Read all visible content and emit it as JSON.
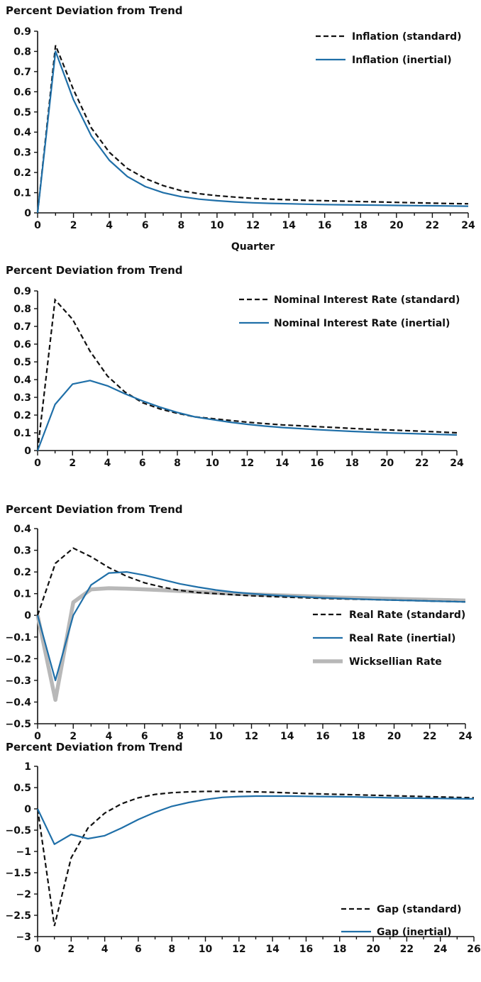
{
  "chart_data": [
    {
      "type": "line",
      "ylabel": "Percent Deviation from Trend",
      "xlabel": "Quarter",
      "xlim": [
        0,
        24
      ],
      "ylim": [
        0,
        0.9
      ],
      "xticks": [
        0,
        2,
        4,
        6,
        8,
        10,
        12,
        14,
        16,
        18,
        20,
        22,
        24
      ],
      "yticks": [
        0,
        0.1,
        0.2,
        0.3,
        0.4,
        0.5,
        0.6,
        0.7,
        0.8,
        0.9
      ],
      "ytick_labels": [
        "0",
        "0.1",
        "0.2",
        "0.3",
        "0.4",
        "0.5",
        "0.6",
        "0.7",
        "0.8",
        "0.9"
      ],
      "legend": "top-right",
      "series": [
        {
          "name": "Inflation (standard)",
          "color": "#111111",
          "style": "dashed",
          "x": [
            0,
            1,
            2,
            3,
            4,
            5,
            6,
            7,
            8,
            9,
            10,
            11,
            12,
            13,
            14,
            15,
            16,
            17,
            18,
            19,
            20,
            21,
            22,
            23,
            24
          ],
          "y": [
            0,
            0.83,
            0.61,
            0.42,
            0.3,
            0.22,
            0.17,
            0.135,
            0.11,
            0.095,
            0.085,
            0.078,
            0.072,
            0.068,
            0.065,
            0.062,
            0.06,
            0.058,
            0.056,
            0.054,
            0.052,
            0.05,
            0.048,
            0.046,
            0.045
          ]
        },
        {
          "name": "Inflation (inertial)",
          "color": "#1f6fa8",
          "style": "solid",
          "x": [
            0,
            1,
            2,
            3,
            4,
            5,
            6,
            7,
            8,
            9,
            10,
            11,
            12,
            13,
            14,
            15,
            16,
            17,
            18,
            19,
            20,
            21,
            22,
            23,
            24
          ],
          "y": [
            0,
            0.8,
            0.56,
            0.38,
            0.26,
            0.18,
            0.13,
            0.1,
            0.08,
            0.068,
            0.06,
            0.054,
            0.05,
            0.047,
            0.045,
            0.043,
            0.041,
            0.04,
            0.039,
            0.038,
            0.037,
            0.036,
            0.035,
            0.034,
            0.033
          ]
        }
      ]
    },
    {
      "type": "line",
      "ylabel": "Percent Deviation from Trend",
      "xlim": [
        0,
        24
      ],
      "ylim": [
        0,
        0.9
      ],
      "xticks": [
        0,
        2,
        4,
        6,
        8,
        10,
        12,
        14,
        16,
        18,
        20,
        22,
        24
      ],
      "yticks": [
        0,
        0.1,
        0.2,
        0.3,
        0.4,
        0.5,
        0.6,
        0.7,
        0.8,
        0.9
      ],
      "ytick_labels": [
        "0",
        "0.1",
        "0.2",
        "0.3",
        "0.4",
        "0.5",
        "0.6",
        "0.7",
        "0.8",
        "0.9"
      ],
      "legend": "top-right",
      "series": [
        {
          "name": "Nominal Interest Rate (standard)",
          "color": "#111111",
          "style": "dashed",
          "x": [
            0,
            1,
            2,
            3,
            4,
            5,
            6,
            7,
            8,
            9,
            10,
            11,
            12,
            13,
            14,
            15,
            16,
            17,
            18,
            19,
            20,
            21,
            22,
            23,
            24
          ],
          "y": [
            0,
            0.85,
            0.74,
            0.56,
            0.42,
            0.33,
            0.27,
            0.235,
            0.21,
            0.19,
            0.18,
            0.17,
            0.16,
            0.152,
            0.145,
            0.14,
            0.135,
            0.13,
            0.125,
            0.12,
            0.117,
            0.113,
            0.109,
            0.105,
            0.1
          ]
        },
        {
          "name": "Nominal Interest Rate (inertial)",
          "color": "#1f6fa8",
          "style": "solid",
          "x": [
            0,
            1,
            2,
            3,
            4,
            5,
            6,
            7,
            8,
            9,
            10,
            11,
            12,
            13,
            14,
            15,
            16,
            17,
            18,
            19,
            20,
            21,
            22,
            23,
            24
          ],
          "y": [
            0,
            0.26,
            0.375,
            0.395,
            0.365,
            0.32,
            0.28,
            0.245,
            0.215,
            0.19,
            0.175,
            0.16,
            0.148,
            0.138,
            0.13,
            0.124,
            0.118,
            0.113,
            0.108,
            0.104,
            0.1,
            0.097,
            0.094,
            0.091,
            0.088
          ]
        }
      ]
    },
    {
      "type": "line",
      "ylabel": "Percent Deviation from Trend",
      "xlim": [
        0,
        24
      ],
      "ylim": [
        -0.5,
        0.4
      ],
      "xticks": [
        0,
        2,
        4,
        6,
        8,
        10,
        12,
        14,
        16,
        18,
        20,
        22,
        24
      ],
      "yticks": [
        -0.5,
        -0.4,
        -0.3,
        -0.2,
        -0.1,
        0,
        0.1,
        0.2,
        0.3,
        0.4
      ],
      "ytick_labels": [
        "−0.5",
        "−0.4",
        "−0.3",
        "−0.2",
        "−0.1",
        "0",
        "0.1",
        "0.2",
        "0.3",
        "0.4"
      ],
      "legend": "bottom-right",
      "series": [
        {
          "name": "Real Rate (standard)",
          "color": "#111111",
          "style": "dashed",
          "x": [
            0,
            1,
            2,
            3,
            4,
            5,
            6,
            7,
            8,
            9,
            10,
            11,
            12,
            13,
            14,
            15,
            16,
            17,
            18,
            19,
            20,
            21,
            22,
            23,
            24
          ],
          "y": [
            0,
            0.24,
            0.31,
            0.27,
            0.22,
            0.18,
            0.15,
            0.13,
            0.115,
            0.105,
            0.1,
            0.095,
            0.09,
            0.087,
            0.084,
            0.081,
            0.078,
            0.076,
            0.074,
            0.072,
            0.07,
            0.068,
            0.066,
            0.064,
            0.062
          ]
        },
        {
          "name": "Real Rate (inertial)",
          "color": "#1f6fa8",
          "style": "solid",
          "x": [
            0,
            1,
            2,
            3,
            4,
            5,
            6,
            7,
            8,
            9,
            10,
            11,
            12,
            13,
            14,
            15,
            16,
            17,
            18,
            19,
            20,
            21,
            22,
            23,
            24
          ],
          "y": [
            0,
            -0.3,
            0,
            0.14,
            0.195,
            0.2,
            0.185,
            0.165,
            0.145,
            0.13,
            0.117,
            0.107,
            0.1,
            0.094,
            0.089,
            0.085,
            0.081,
            0.078,
            0.075,
            0.072,
            0.07,
            0.068,
            0.066,
            0.064,
            0.062
          ]
        },
        {
          "name": "Wicksellian Rate",
          "color": "#b8b8b8",
          "style": "thick",
          "x": [
            0,
            1,
            2,
            3,
            4,
            5,
            6,
            7,
            8,
            9,
            10,
            11,
            12,
            13,
            14,
            15,
            16,
            17,
            18,
            19,
            20,
            21,
            22,
            23,
            24
          ],
          "y": [
            0,
            -0.39,
            0.06,
            0.12,
            0.125,
            0.123,
            0.12,
            0.116,
            0.112,
            0.108,
            0.104,
            0.1,
            0.097,
            0.094,
            0.091,
            0.088,
            0.085,
            0.082,
            0.08,
            0.078,
            0.076,
            0.074,
            0.072,
            0.07,
            0.068
          ]
        }
      ]
    },
    {
      "type": "line",
      "ylabel": "Percent Deviation from Trend",
      "xlim": [
        0,
        26
      ],
      "ylim": [
        -3,
        1
      ],
      "xticks": [
        0,
        2,
        4,
        6,
        8,
        10,
        12,
        14,
        16,
        18,
        20,
        22,
        24,
        26
      ],
      "yticks": [
        -3,
        -2.5,
        -2,
        -1.5,
        -1,
        -0.5,
        0,
        0.5,
        1
      ],
      "ytick_labels": [
        "−3",
        "−2.5",
        "−2",
        "−1.5",
        "−1",
        "−0.5",
        "0",
        "0.5",
        "1"
      ],
      "legend": "bottom-right",
      "series": [
        {
          "name": "Gap (standard)",
          "color": "#111111",
          "style": "dashed",
          "x": [
            0,
            1,
            2,
            3,
            4,
            5,
            6,
            7,
            8,
            9,
            10,
            11,
            12,
            13,
            14,
            15,
            16,
            17,
            18,
            19,
            20,
            21,
            22,
            23,
            24,
            25,
            26
          ],
          "y": [
            0,
            -2.75,
            -1.15,
            -0.45,
            -0.1,
            0.12,
            0.26,
            0.34,
            0.38,
            0.4,
            0.41,
            0.41,
            0.405,
            0.4,
            0.39,
            0.375,
            0.36,
            0.35,
            0.34,
            0.33,
            0.32,
            0.31,
            0.3,
            0.29,
            0.28,
            0.27,
            0.26
          ]
        },
        {
          "name": "Gap (inertial)",
          "color": "#1f6fa8",
          "style": "solid",
          "x": [
            0,
            1,
            2,
            3,
            4,
            5,
            6,
            7,
            8,
            9,
            10,
            11,
            12,
            13,
            14,
            15,
            16,
            17,
            18,
            19,
            20,
            21,
            22,
            23,
            24,
            25,
            26
          ],
          "y": [
            0,
            -0.83,
            -0.6,
            -0.7,
            -0.63,
            -0.45,
            -0.25,
            -0.08,
            0.06,
            0.15,
            0.22,
            0.27,
            0.29,
            0.3,
            0.3,
            0.3,
            0.295,
            0.29,
            0.285,
            0.28,
            0.27,
            0.26,
            0.255,
            0.25,
            0.245,
            0.24,
            0.235
          ]
        }
      ]
    }
  ]
}
